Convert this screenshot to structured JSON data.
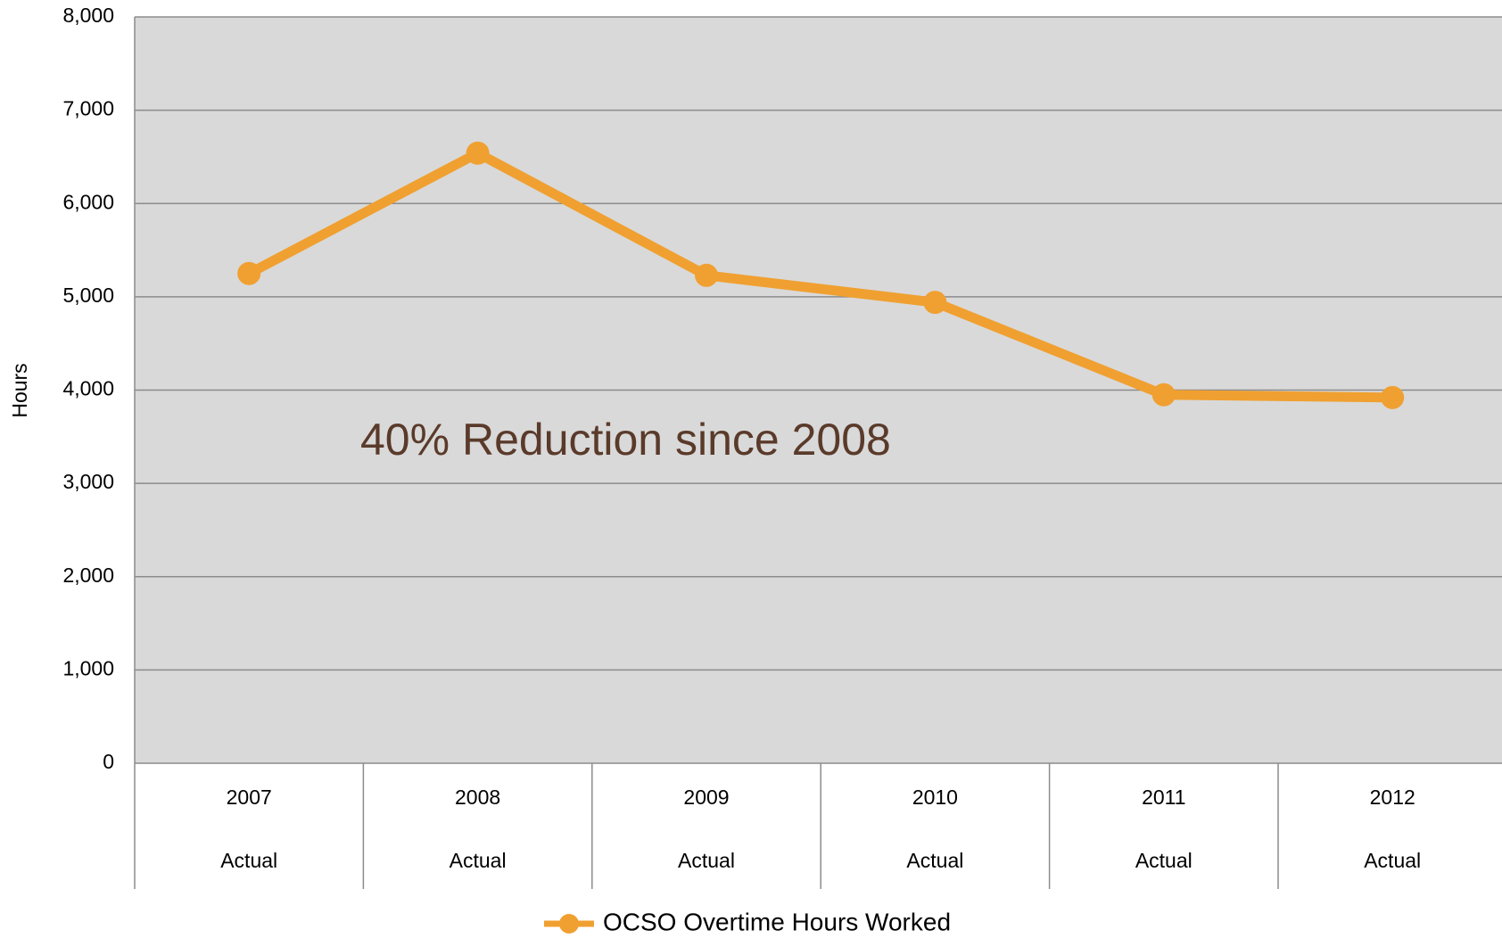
{
  "chart_data": {
    "type": "line",
    "y_label": "Hours",
    "annotation": "40% Reduction since 2008",
    "categories": [
      "2007",
      "2008",
      "2009",
      "2010",
      "2011",
      "2012"
    ],
    "category_sublabels": [
      "Actual",
      "Actual",
      "Actual",
      "Actual",
      "Actual",
      "Actual"
    ],
    "series": [
      {
        "name": "OCSO Overtime Hours Worked",
        "color": "#f0a030",
        "values": [
          5250,
          6540,
          5230,
          4940,
          3950,
          3920
        ]
      }
    ],
    "ylim": [
      0,
      8000
    ],
    "yticks": [
      0,
      {
        "value": 1000,
        "label": "1,000"
      },
      {
        "value": 2000,
        "label": "2,000"
      },
      {
        "value": 3000,
        "label": "3,000"
      },
      {
        "value": 4000,
        "label": "4,000"
      },
      {
        "value": 5000,
        "label": "5,000"
      },
      {
        "value": 6000,
        "label": "6,000"
      },
      {
        "value": 7000,
        "label": "7,000"
      },
      {
        "value": 8000,
        "label": "8,000"
      }
    ],
    "grid": true,
    "legend": "bottom"
  }
}
